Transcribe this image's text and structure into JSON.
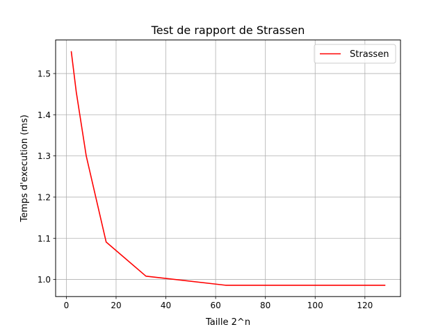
{
  "chart_data": {
    "type": "line",
    "title": "Test de rapport de Strassen",
    "xlabel": "Taille 2^n",
    "ylabel": "Temps d'execution (ms)",
    "xlim": [
      -4.3,
      134.3
    ],
    "ylim": [
      0.9585,
      1.5815
    ],
    "xticks": [
      0,
      20,
      40,
      60,
      80,
      100,
      120
    ],
    "yticks": [
      1.0,
      1.1,
      1.2,
      1.3,
      1.4,
      1.5
    ],
    "ytick_labels": [
      "1.0",
      "1.1",
      "1.2",
      "1.3",
      "1.4",
      "1.5"
    ],
    "grid": true,
    "legend_position": "top-right",
    "series": [
      {
        "name": "Strassen",
        "color": "#ff0000",
        "x": [
          2,
          4,
          8,
          16,
          32,
          64,
          128
        ],
        "y": [
          1.553,
          1.455,
          1.3,
          1.091,
          1.008,
          0.986,
          0.986
        ]
      }
    ]
  }
}
